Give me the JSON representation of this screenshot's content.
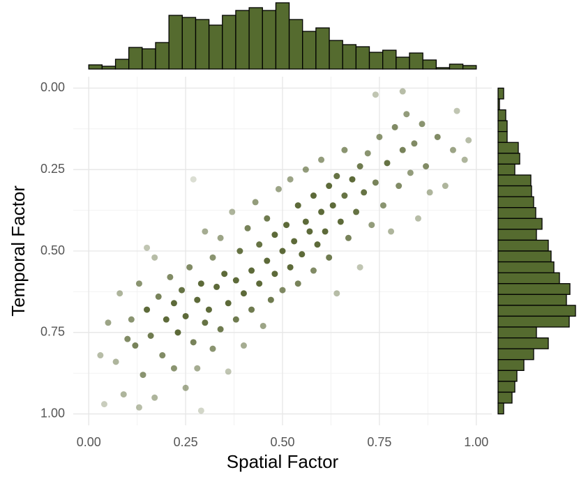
{
  "chart_data": [
    {
      "type": "scatter",
      "x_label": "Spatial Factor",
      "y_label": "Temporal Factor",
      "color": "#4b5a23",
      "xlim": [
        -0.04,
        1.04
      ],
      "ylim": [
        -0.035,
        1.035
      ],
      "y_reversed": true,
      "grid": true,
      "xticks": [
        {
          "value": 0,
          "label": "0.00"
        },
        {
          "value": 0.25,
          "label": "0.25"
        },
        {
          "value": 0.5,
          "label": "0.50"
        },
        {
          "value": 0.75,
          "label": "0.75"
        },
        {
          "value": 1,
          "label": "1.00"
        }
      ],
      "yticks": [
        {
          "value": 0,
          "label": "0.00"
        },
        {
          "value": 0.25,
          "label": "0.25"
        },
        {
          "value": 0.5,
          "label": "0.50"
        },
        {
          "value": 0.75,
          "label": "0.75"
        },
        {
          "value": 1,
          "label": "1.00"
        }
      ],
      "x": [
        0.03,
        0.04,
        0.05,
        0.07,
        0.08,
        0.09,
        0.1,
        0.11,
        0.12,
        0.13,
        0.14,
        0.15,
        0.16,
        0.17,
        0.17,
        0.18,
        0.19,
        0.2,
        0.21,
        0.22,
        0.22,
        0.23,
        0.24,
        0.25,
        0.25,
        0.26,
        0.27,
        0.28,
        0.28,
        0.29,
        0.3,
        0.3,
        0.31,
        0.32,
        0.32,
        0.33,
        0.34,
        0.34,
        0.35,
        0.36,
        0.36,
        0.37,
        0.38,
        0.38,
        0.39,
        0.4,
        0.4,
        0.41,
        0.42,
        0.42,
        0.43,
        0.44,
        0.44,
        0.45,
        0.46,
        0.46,
        0.47,
        0.48,
        0.48,
        0.49,
        0.5,
        0.5,
        0.51,
        0.52,
        0.52,
        0.53,
        0.54,
        0.54,
        0.55,
        0.56,
        0.56,
        0.57,
        0.58,
        0.58,
        0.59,
        0.6,
        0.6,
        0.61,
        0.62,
        0.62,
        0.63,
        0.64,
        0.64,
        0.65,
        0.66,
        0.66,
        0.67,
        0.68,
        0.69,
        0.7,
        0.7,
        0.71,
        0.72,
        0.73,
        0.74,
        0.75,
        0.76,
        0.77,
        0.78,
        0.79,
        0.8,
        0.81,
        0.82,
        0.83,
        0.84,
        0.85,
        0.86,
        0.87,
        0.88,
        0.9,
        0.92,
        0.94,
        0.95,
        0.97,
        0.98,
        0.74,
        0.81,
        0.13,
        0.29,
        0.15,
        0.27
      ],
      "y": [
        0.82,
        0.97,
        0.72,
        0.84,
        0.63,
        0.94,
        0.77,
        0.71,
        0.79,
        0.6,
        0.88,
        0.68,
        0.76,
        0.52,
        0.95,
        0.64,
        0.82,
        0.71,
        0.58,
        0.66,
        0.86,
        0.75,
        0.62,
        0.7,
        0.92,
        0.55,
        0.78,
        0.65,
        0.86,
        0.6,
        0.72,
        0.44,
        0.68,
        0.8,
        0.52,
        0.61,
        0.74,
        0.46,
        0.57,
        0.66,
        0.87,
        0.38,
        0.59,
        0.71,
        0.5,
        0.63,
        0.79,
        0.43,
        0.56,
        0.68,
        0.35,
        0.6,
        0.48,
        0.73,
        0.53,
        0.4,
        0.65,
        0.45,
        0.57,
        0.31,
        0.5,
        0.62,
        0.42,
        0.55,
        0.28,
        0.47,
        0.36,
        0.6,
        0.51,
        0.41,
        0.25,
        0.44,
        0.33,
        0.56,
        0.48,
        0.38,
        0.22,
        0.44,
        0.3,
        0.52,
        0.36,
        0.27,
        0.63,
        0.41,
        0.19,
        0.33,
        0.46,
        0.28,
        0.38,
        0.24,
        0.55,
        0.32,
        0.2,
        0.42,
        0.29,
        0.15,
        0.36,
        0.23,
        0.44,
        0.12,
        0.3,
        0.19,
        0.08,
        0.26,
        0.17,
        0.4,
        0.11,
        0.24,
        0.32,
        0.15,
        0.3,
        0.19,
        0.07,
        0.22,
        0.16,
        0.02,
        0.01,
        0.98,
        0.99,
        0.49,
        0.28
      ]
    },
    {
      "type": "histogram",
      "orientation": "vertical",
      "color": "#556b2f",
      "bins": [
        0,
        0.0345,
        0.069,
        0.1034,
        0.1379,
        0.1724,
        0.2069,
        0.2414,
        0.2759,
        0.3103,
        0.3448,
        0.3793,
        0.4138,
        0.4483,
        0.4828,
        0.5172,
        0.5517,
        0.5862,
        0.6207,
        0.6552,
        0.6897,
        0.7241,
        0.7586,
        0.7931,
        0.8276,
        0.8621,
        0.8966,
        0.931,
        0.9655,
        1
      ],
      "counts": [
        6,
        4,
        14,
        31,
        29,
        38,
        77,
        74,
        71,
        63,
        77,
        84,
        88,
        84,
        95,
        71,
        54,
        59,
        41,
        35,
        32,
        24,
        27,
        17,
        23,
        13,
        2,
        7,
        5
      ]
    },
    {
      "type": "histogram",
      "orientation": "horizontal",
      "color": "#556b2f",
      "bins": [
        0,
        0.0333,
        0.0667,
        0.1,
        0.1333,
        0.1667,
        0.2,
        0.2333,
        0.2667,
        0.3,
        0.3333,
        0.3667,
        0.4,
        0.4333,
        0.4667,
        0.5,
        0.5333,
        0.5667,
        0.6,
        0.6333,
        0.6667,
        0.7,
        0.7333,
        0.7667,
        0.8,
        0.8333,
        0.8667,
        0.9,
        0.9333,
        0.9667,
        1
      ],
      "counts": [
        8,
        2,
        11,
        13,
        13,
        29,
        31,
        24,
        47,
        48,
        51,
        54,
        63,
        55,
        72,
        76,
        80,
        88,
        103,
        98,
        111,
        102,
        55,
        72,
        51,
        37,
        27,
        24,
        20,
        8
      ]
    }
  ]
}
